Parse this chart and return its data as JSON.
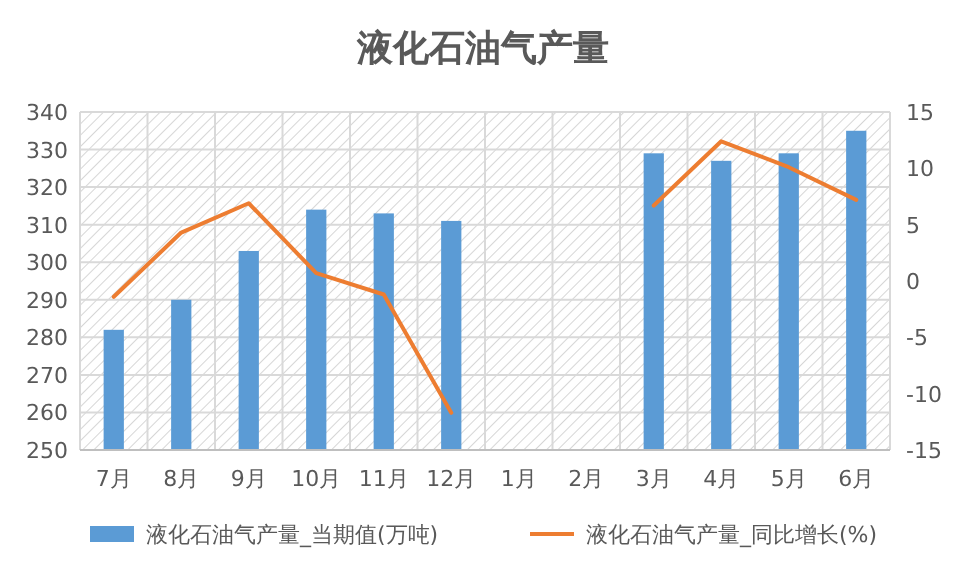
{
  "chart_data": {
    "type": "bar",
    "title": "液化石油气产量",
    "categories": [
      "7月",
      "8月",
      "9月",
      "10月",
      "11月",
      "12月",
      "1月",
      "2月",
      "3月",
      "4月",
      "5月",
      "6月"
    ],
    "series": [
      {
        "name": "液化石油气产量_当期值(万吨)",
        "color": "#5b9bd5",
        "values": [
          282,
          290,
          303,
          314,
          313,
          311,
          null,
          null,
          329,
          327,
          329,
          335
        ]
      },
      {
        "name": "液化石油气产量_同比增长(%)",
        "type": "line",
        "axis": "y2",
        "color": "#ed7d31",
        "values": [
          -1.4,
          4.3,
          6.9,
          0.7,
          -1.2,
          -11.7,
          null,
          null,
          6.7,
          12.4,
          10.1,
          7.2
        ]
      }
    ],
    "ylim": [
      250,
      340
    ],
    "yticks": [
      250,
      260,
      270,
      280,
      290,
      300,
      310,
      320,
      330,
      340
    ],
    "y2lim": [
      -15,
      15
    ],
    "y2ticks": [
      -15,
      -10,
      -5,
      0,
      5,
      10,
      15
    ],
    "grid": true,
    "legend": "bottom",
    "marker": "none",
    "line_style": "solid"
  }
}
